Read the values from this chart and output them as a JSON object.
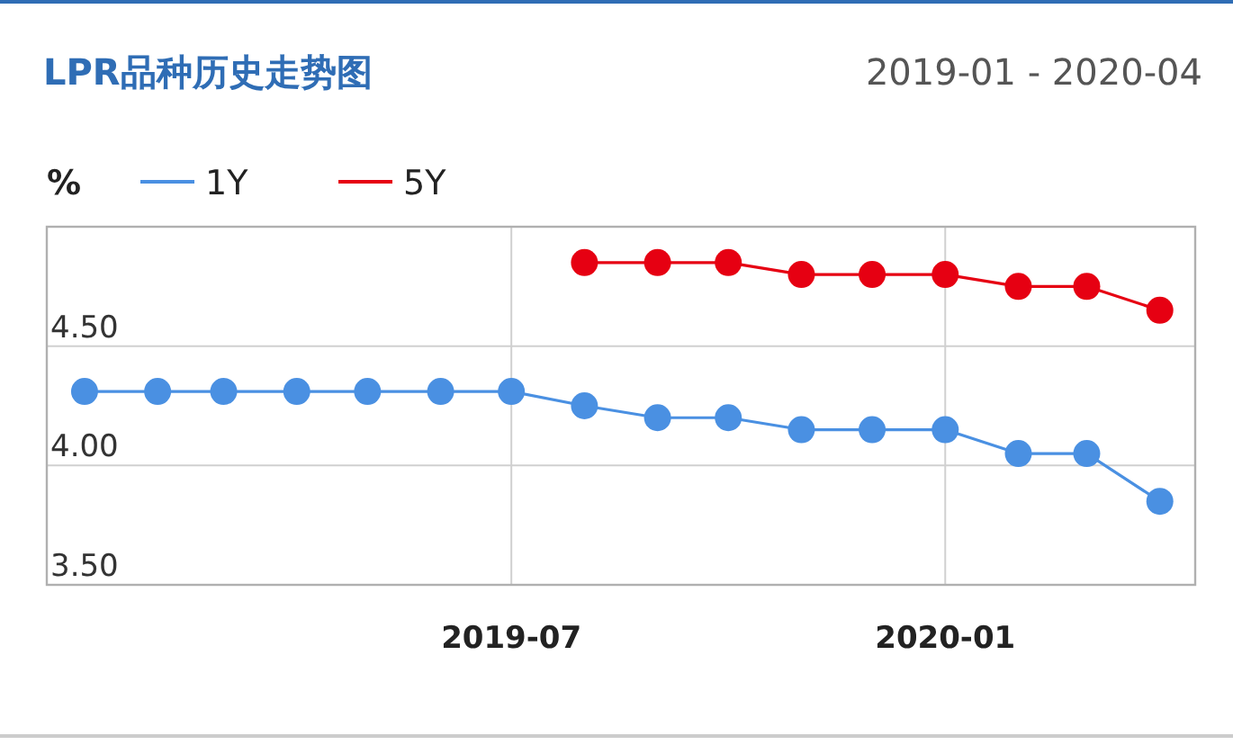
{
  "chart_data": {
    "type": "line",
    "title": "LPR品种历史走势图",
    "subtitle": "2019-01 - 2020-04",
    "ylabel": "%",
    "x": [
      "2019-01",
      "2019-02",
      "2019-03",
      "2019-04",
      "2019-05",
      "2019-06",
      "2019-07",
      "2019-08",
      "2019-09",
      "2019-10",
      "2019-11",
      "2019-12",
      "2020-01",
      "2020-02",
      "2020-03",
      "2020-04"
    ],
    "series": [
      {
        "name": "1Y",
        "color": "#4a90e2",
        "values": [
          4.31,
          4.31,
          4.31,
          4.31,
          4.31,
          4.31,
          4.31,
          4.25,
          4.2,
          4.2,
          4.15,
          4.15,
          4.15,
          4.05,
          4.05,
          3.85
        ]
      },
      {
        "name": "5Y",
        "color": "#e60012",
        "values": [
          null,
          null,
          null,
          null,
          null,
          null,
          null,
          4.85,
          4.85,
          4.85,
          4.8,
          4.8,
          4.8,
          4.75,
          4.75,
          4.65
        ]
      }
    ],
    "xlim": [
      "2018-12-16",
      "2020-04-16"
    ],
    "xticks": [
      "2019-07",
      "2020-01"
    ],
    "ylim": [
      3.5,
      5.0
    ],
    "yticks": [
      {
        "value": 3.5,
        "label": "3.50"
      },
      {
        "value": 4.0,
        "label": "4.00"
      },
      {
        "value": 4.5,
        "label": "4.50"
      },
      {
        "value": 5.0,
        "label": null
      }
    ],
    "grid": true,
    "legend": "top left",
    "marker": "circle",
    "line_style": "solid"
  }
}
